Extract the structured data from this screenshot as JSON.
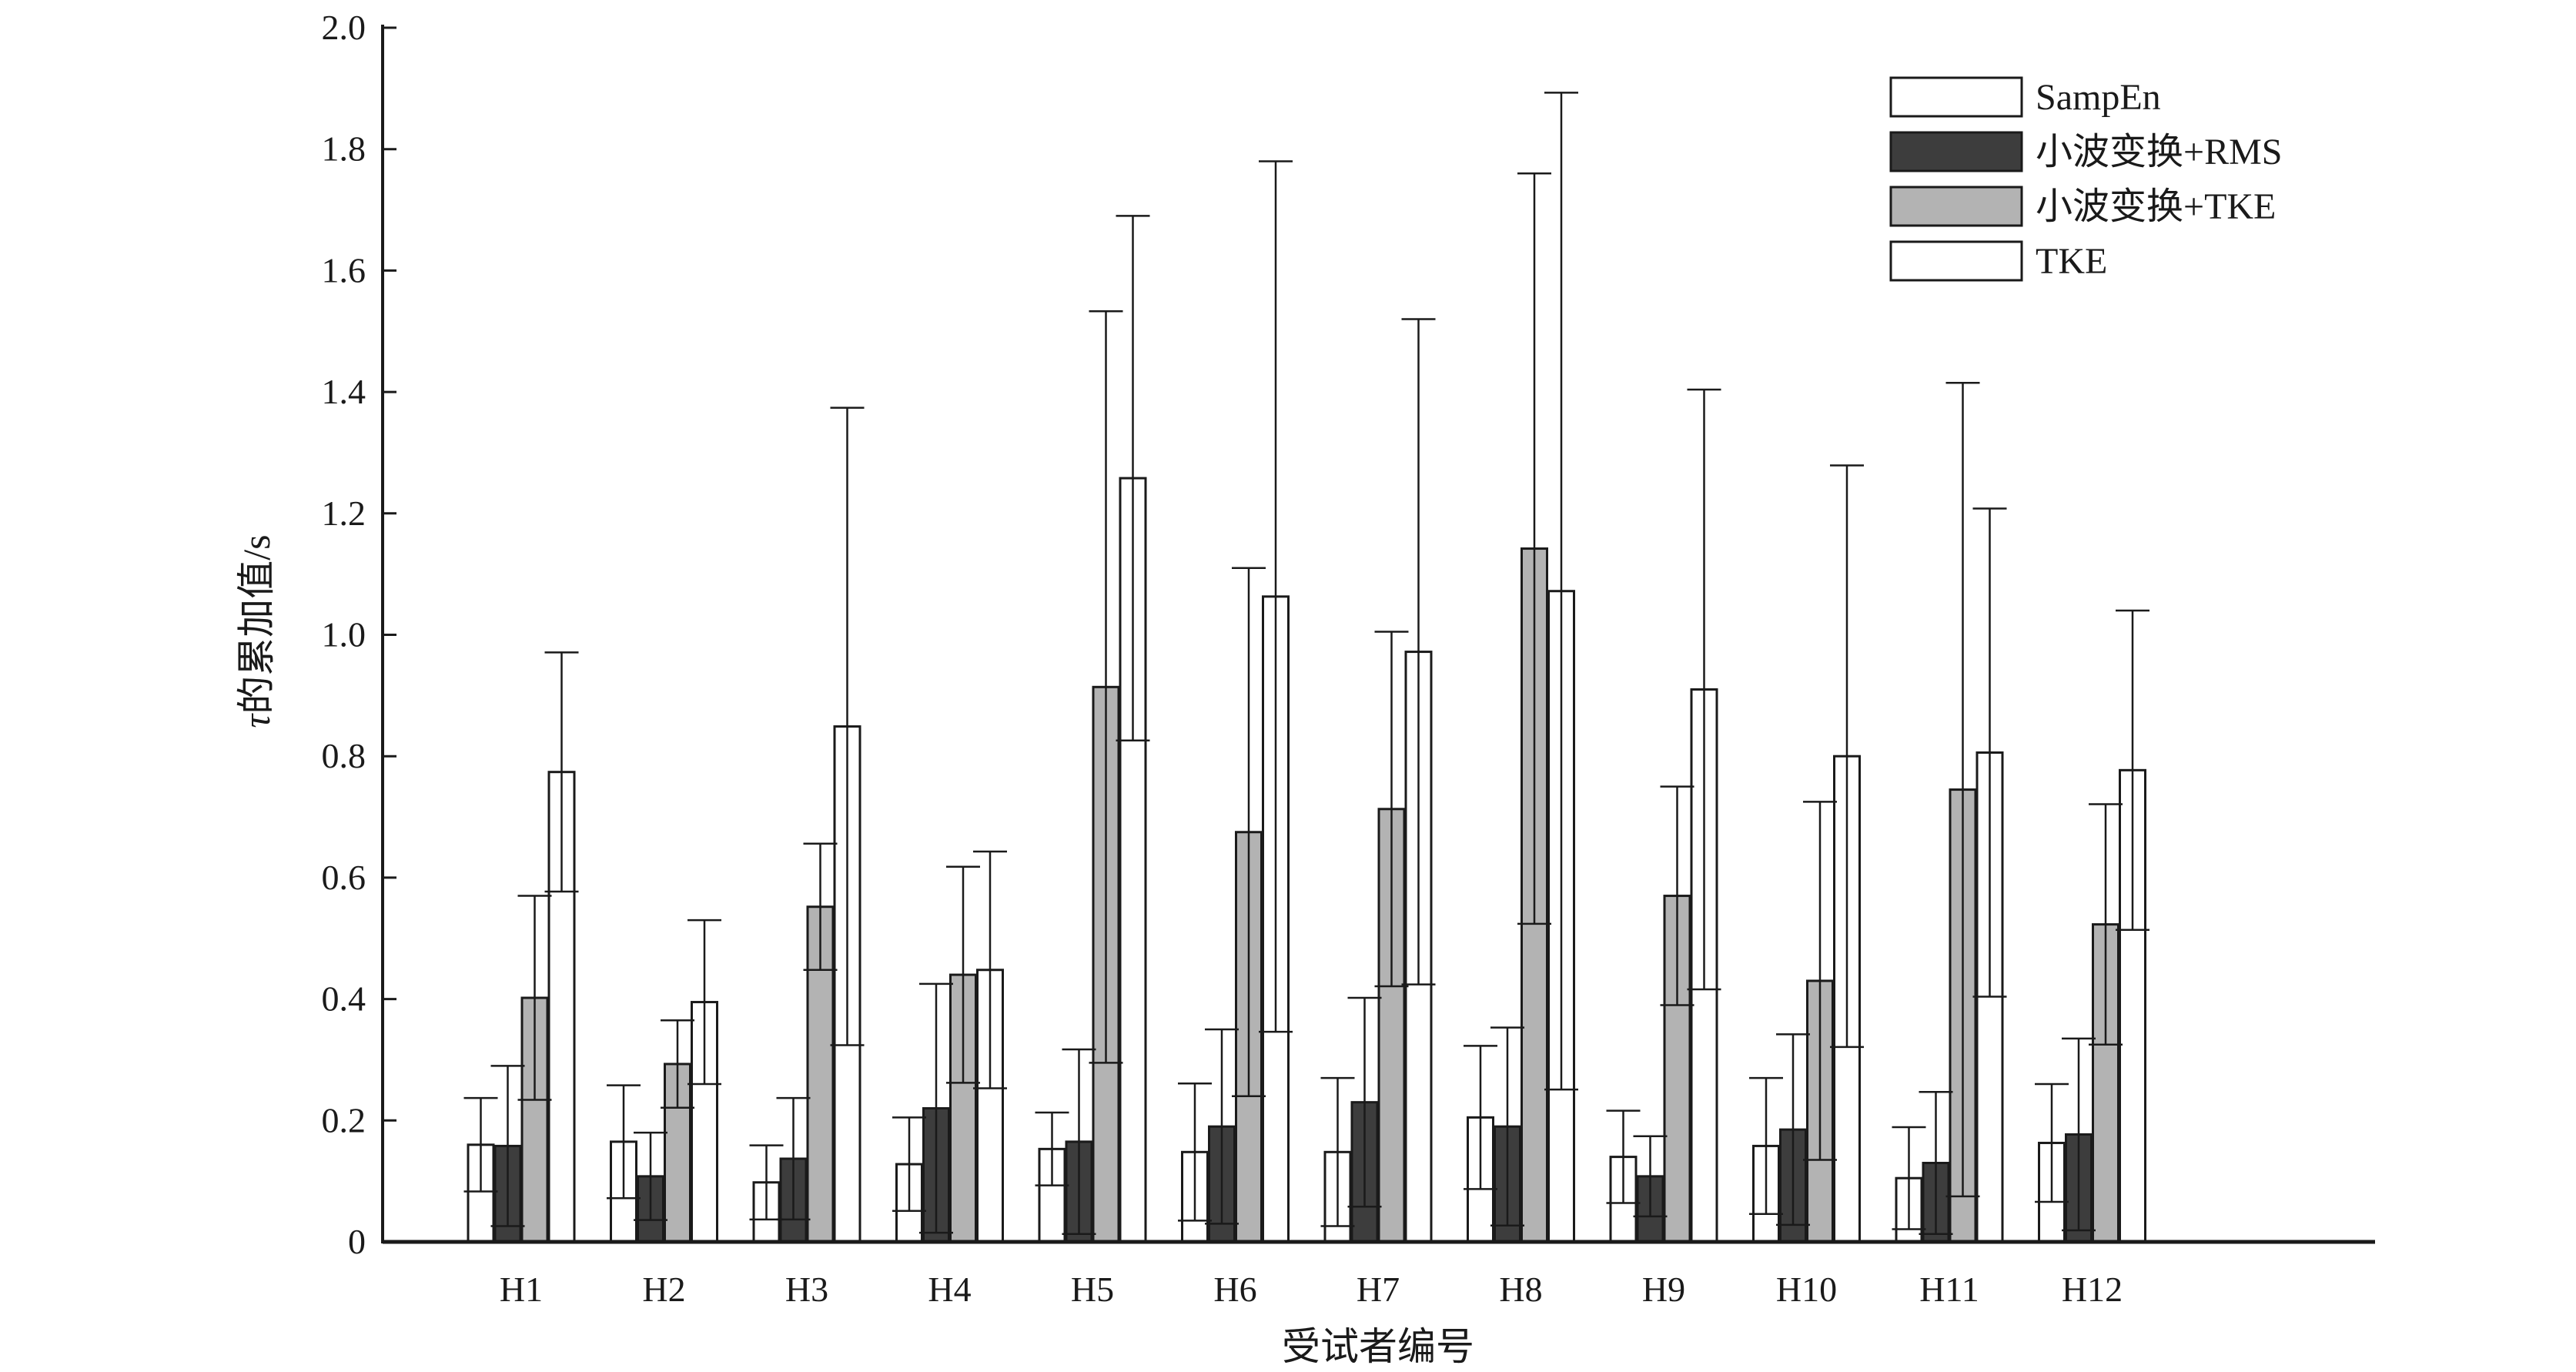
{
  "chart_data": {
    "type": "bar",
    "title": "",
    "xlabel": "受试者编号",
    "ylabel_symbol": "τ",
    "ylabel": "的累加值/s",
    "ylim": [
      0,
      2.0
    ],
    "yticks": [
      "0",
      "0.2",
      "0.4",
      "0.6",
      "0.8",
      "1.0",
      "1.2",
      "1.4",
      "1.6",
      "1.8",
      "2.0"
    ],
    "grid": false,
    "legend_position": "top-right",
    "categories": [
      "H1",
      "H2",
      "H3",
      "H4",
      "H5",
      "H6",
      "H7",
      "H8",
      "H9",
      "H10",
      "H11",
      "H12"
    ],
    "series": [
      {
        "name": "SampEn",
        "fill": "#ffffff",
        "values": [
          0.16,
          0.165,
          0.098,
          0.128,
          0.153,
          0.148,
          0.148,
          0.205,
          0.14,
          0.158,
          0.105,
          0.163
        ],
        "errors": [
          0.077,
          0.093,
          0.061,
          0.077,
          0.06,
          0.113,
          0.122,
          0.118,
          0.076,
          0.112,
          0.084,
          0.097
        ]
      },
      {
        "name": "小波变换+RMS",
        "fill": "#3d3d3d",
        "values": [
          0.158,
          0.108,
          0.137,
          0.22,
          0.165,
          0.19,
          0.23,
          0.19,
          0.108,
          0.185,
          0.13,
          0.177
        ],
        "errors": [
          0.132,
          0.072,
          0.1,
          0.205,
          0.152,
          0.16,
          0.172,
          0.163,
          0.066,
          0.157,
          0.117,
          0.158
        ]
      },
      {
        "name": "小波变换+TKE",
        "fill": "#b3b3b3",
        "values": [
          0.402,
          0.293,
          0.552,
          0.44,
          0.914,
          0.675,
          0.713,
          1.142,
          0.57,
          0.43,
          0.745,
          0.523
        ],
        "errors": [
          0.168,
          0.072,
          0.104,
          0.178,
          0.619,
          0.435,
          0.292,
          0.618,
          0.18,
          0.295,
          0.67,
          0.198
        ]
      },
      {
        "name": "TKE",
        "fill": "#ffffff",
        "values": [
          0.774,
          0.395,
          0.849,
          0.448,
          1.258,
          1.063,
          0.972,
          1.072,
          0.91,
          0.8,
          0.806,
          0.777
        ],
        "errors": [
          0.197,
          0.135,
          0.525,
          0.195,
          0.432,
          0.717,
          0.548,
          0.821,
          0.494,
          0.479,
          0.402,
          0.263
        ]
      }
    ]
  }
}
